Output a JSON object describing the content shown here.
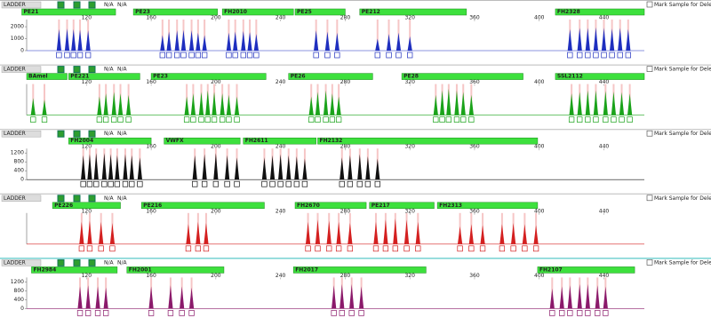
{
  "na_label": "N/A",
  "mark_label": "Mark Sample for Deletion",
  "xlim": [
    83,
    465
  ],
  "xticks": [
    120,
    160,
    200,
    240,
    280,
    320,
    360,
    400,
    440
  ],
  "panels": [
    {
      "sample": "LADDER",
      "color": "#1f2fbf",
      "ylim": [
        0,
        2600
      ],
      "yticks": [
        0,
        1000,
        2000
      ],
      "markers": [
        {
          "name": "PE21",
          "range": [
            80,
            138
          ],
          "peaks": [
            [
              103,
              1800
            ],
            [
              108,
              1850
            ],
            [
              112,
              1800
            ],
            [
              116,
              1750
            ],
            [
              121,
              1700
            ]
          ]
        },
        {
          "name": "PE23",
          "range": [
            149,
            201
          ],
          "peaks": [
            [
              167,
              1300
            ],
            [
              171,
              1600
            ],
            [
              176,
              1700
            ],
            [
              180,
              1750
            ],
            [
              185,
              1700
            ],
            [
              189,
              1500
            ],
            [
              193,
              1300
            ]
          ]
        },
        {
          "name": "FH2010",
          "range": [
            204,
            248
          ],
          "peaks": [
            [
              208,
              1500
            ],
            [
              212,
              1600
            ],
            [
              217,
              1650
            ],
            [
              221,
              1550
            ],
            [
              225,
              1400
            ]
          ]
        },
        {
          "name": "PE25",
          "range": [
            249,
            280
          ],
          "peaks": [
            [
              262,
              1700
            ],
            [
              269,
              1600
            ],
            [
              275,
              1500
            ]
          ]
        },
        {
          "name": "PE212",
          "range": [
            289,
            355
          ],
          "peaks": [
            [
              300,
              1000
            ],
            [
              307,
              1400
            ],
            [
              313,
              1500
            ],
            [
              320,
              1200
            ]
          ]
        },
        {
          "name": "FH2328",
          "range": [
            410,
            465
          ],
          "peaks": [
            [
              419,
              1800
            ],
            [
              425,
              1900
            ],
            [
              430,
              1900
            ],
            [
              435,
              1950
            ],
            [
              440,
              1900
            ],
            [
              445,
              1850
            ],
            [
              450,
              1900
            ],
            [
              455,
              1800
            ]
          ]
        }
      ]
    },
    {
      "sample": "LADDER",
      "color": "#1aa31a",
      "ylim": [
        0,
        1000
      ],
      "yticks": [],
      "markers": [
        {
          "name": "BAmel",
          "range": [
            83,
            108
          ],
          "peaks": [
            [
              87,
              550
            ],
            [
              94,
              500
            ]
          ]
        },
        {
          "name": "PE221",
          "range": [
            109,
            153
          ],
          "peaks": [
            [
              128,
              600
            ],
            [
              132,
              700
            ],
            [
              137,
              750
            ],
            [
              141,
              700
            ],
            [
              146,
              650
            ]
          ]
        },
        {
          "name": "PE23",
          "range": [
            160,
            231
          ],
          "peaks": [
            [
              182,
              600
            ],
            [
              186,
              700
            ],
            [
              191,
              750
            ],
            [
              195,
              800
            ],
            [
              199,
              750
            ],
            [
              204,
              700
            ],
            [
              208,
              650
            ],
            [
              213,
              600
            ]
          ]
        },
        {
          "name": "PE26",
          "range": [
            245,
            297
          ],
          "peaks": [
            [
              259,
              600
            ],
            [
              263,
              750
            ],
            [
              268,
              800
            ],
            [
              272,
              700
            ],
            [
              276,
              600
            ]
          ]
        },
        {
          "name": "PE28",
          "range": [
            315,
            390
          ],
          "peaks": [
            [
              336,
              650
            ],
            [
              340,
              800
            ],
            [
              344,
              850
            ],
            [
              349,
              800
            ],
            [
              353,
              750
            ],
            [
              358,
              650
            ]
          ]
        },
        {
          "name": "SSL2112",
          "range": [
            410,
            465
          ],
          "peaks": [
            [
              420,
              700
            ],
            [
              425,
              750
            ],
            [
              430,
              800
            ],
            [
              435,
              800
            ],
            [
              441,
              780
            ],
            [
              446,
              760
            ],
            [
              451,
              740
            ],
            [
              456,
              700
            ]
          ]
        }
      ]
    },
    {
      "sample": "LADDER",
      "color": "#111111",
      "ylim": [
        0,
        1400
      ],
      "yticks": [
        0,
        400,
        800,
        1200
      ],
      "markers": [
        {
          "name": "FH2004",
          "range": [
            109,
            160
          ],
          "peaks": [
            [
              118,
              1100
            ],
            [
              122,
              1150
            ],
            [
              126,
              1200
            ],
            [
              131,
              1200
            ],
            [
              135,
              1150
            ],
            [
              139,
              1100
            ],
            [
              144,
              1150
            ],
            [
              148,
              1100
            ],
            [
              153,
              1000
            ]
          ]
        },
        {
          "name": "VWFX",
          "range": [
            168,
            215
          ],
          "peaks": [
            [
              187,
              1100
            ],
            [
              193,
              1150
            ],
            [
              200,
              1200
            ],
            [
              207,
              1100
            ],
            [
              213,
              1000
            ]
          ]
        },
        {
          "name": "FH2611",
          "range": [
            217,
            262
          ],
          "peaks": [
            [
              230,
              1000
            ],
            [
              235,
              1100
            ],
            [
              240,
              1150
            ],
            [
              245,
              1100
            ],
            [
              250,
              1050
            ],
            [
              255,
              950
            ]
          ]
        },
        {
          "name": "FH2132",
          "range": [
            263,
            399
          ],
          "peaks": [
            [
              278,
              1000
            ],
            [
              283,
              1100
            ],
            [
              289,
              1150
            ],
            [
              294,
              1050
            ],
            [
              300,
              950
            ]
          ]
        }
      ]
    },
    {
      "sample": "LADDER",
      "color": "#d42020",
      "ylim": [
        0,
        1400
      ],
      "yticks": [],
      "markers": [
        {
          "name": "PE226",
          "range": [
            99,
            141
          ],
          "peaks": [
            [
              117,
              1000
            ],
            [
              122,
              1050
            ],
            [
              129,
              1000
            ],
            [
              136,
              950
            ]
          ]
        },
        {
          "name": "PE216",
          "range": [
            154,
            230
          ],
          "peaks": [
            [
              183,
              900
            ],
            [
              189,
              1000
            ],
            [
              194,
              950
            ]
          ]
        },
        {
          "name": "FH2670",
          "range": [
            249,
            293
          ],
          "peaks": [
            [
              257,
              1000
            ],
            [
              263,
              1100
            ],
            [
              270,
              1050
            ],
            [
              276,
              1000
            ],
            [
              283,
              950
            ]
          ]
        },
        {
          "name": "PE217",
          "range": [
            295,
            335
          ],
          "peaks": [
            [
              299,
              1000
            ],
            [
              305,
              1100
            ],
            [
              311,
              1150
            ],
            [
              318,
              1100
            ],
            [
              325,
              1000
            ]
          ]
        },
        {
          "name": "FH2313",
          "range": [
            337,
            399
          ],
          "peaks": [
            [
              351,
              800
            ],
            [
              358,
              900
            ],
            [
              365,
              850
            ],
            [
              377,
              900
            ],
            [
              384,
              950
            ],
            [
              391,
              900
            ],
            [
              398,
              850
            ]
          ]
        }
      ]
    },
    {
      "sample": "LADDER",
      "color": "#8b1a6b",
      "ylim": [
        0,
        1400
      ],
      "yticks": [
        0,
        400,
        800,
        1200
      ],
      "markers": [
        {
          "name": "FH2984",
          "range": [
            86,
            139
          ],
          "peaks": [
            [
              116,
              1000
            ],
            [
              121,
              1050
            ],
            [
              127,
              1000
            ],
            [
              132,
              950
            ]
          ]
        },
        {
          "name": "FH2001",
          "range": [
            145,
            205
          ],
          "peaks": [
            [
              160,
              1000
            ],
            [
              172,
              1050
            ],
            [
              179,
              1000
            ],
            [
              185,
              950
            ]
          ]
        },
        {
          "name": "FH2017",
          "range": [
            248,
            330
          ],
          "peaks": [
            [
              273,
              1050
            ],
            [
              278,
              1100
            ],
            [
              284,
              1100
            ],
            [
              290,
              1000
            ]
          ]
        },
        {
          "name": "FH2107",
          "range": [
            399,
            459
          ],
          "peaks": [
            [
              408,
              900
            ],
            [
              414,
              1000
            ],
            [
              419,
              1050
            ],
            [
              425,
              1100
            ],
            [
              430,
              1100
            ],
            [
              436,
              1050
            ],
            [
              441,
              1000
            ]
          ]
        }
      ]
    }
  ]
}
